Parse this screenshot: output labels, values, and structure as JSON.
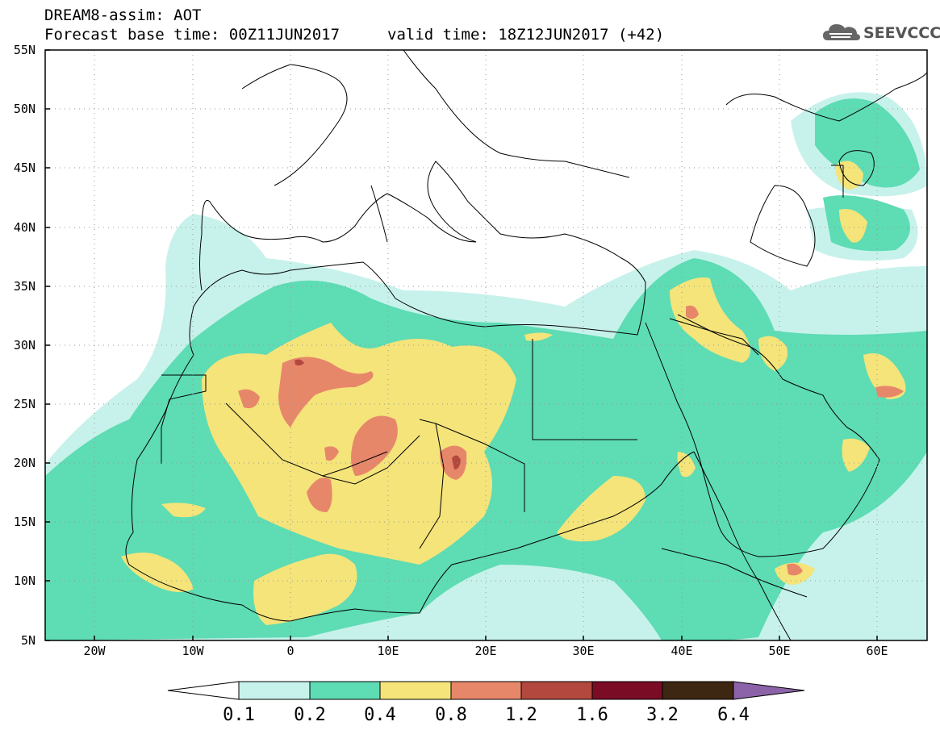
{
  "header": {
    "line1": "DREAM8-assim: AOT",
    "line2": "Forecast base time: 00Z11JUN2017",
    "valid": "valid time: 18Z12JUN2017 (+42)",
    "logo_text": "SEEVCCC"
  },
  "axes": {
    "lat_labels": [
      "55N",
      "50N",
      "45N",
      "40N",
      "35N",
      "30N",
      "25N",
      "20N",
      "15N",
      "10N",
      "5N"
    ],
    "lon_labels": [
      "20W",
      "10W",
      "0",
      "10E",
      "20E",
      "30E",
      "40E",
      "50E",
      "60E"
    ]
  },
  "colorbar": {
    "labels": [
      "0.1",
      "0.2",
      "0.4",
      "0.8",
      "1.2",
      "1.6",
      "3.2",
      "6.4"
    ],
    "colors": [
      "#ffffff",
      "#c7f2eb",
      "#5edcb4",
      "#f4e47a",
      "#e7876a",
      "#b2483e",
      "#7a0c26",
      "#3d2612",
      "#8c63a8"
    ]
  },
  "palette": {
    "c01": "#c7f2eb",
    "c02": "#5edcb4",
    "c04": "#f4e47a",
    "c08": "#e7876a",
    "c12": "#b2483e"
  }
}
